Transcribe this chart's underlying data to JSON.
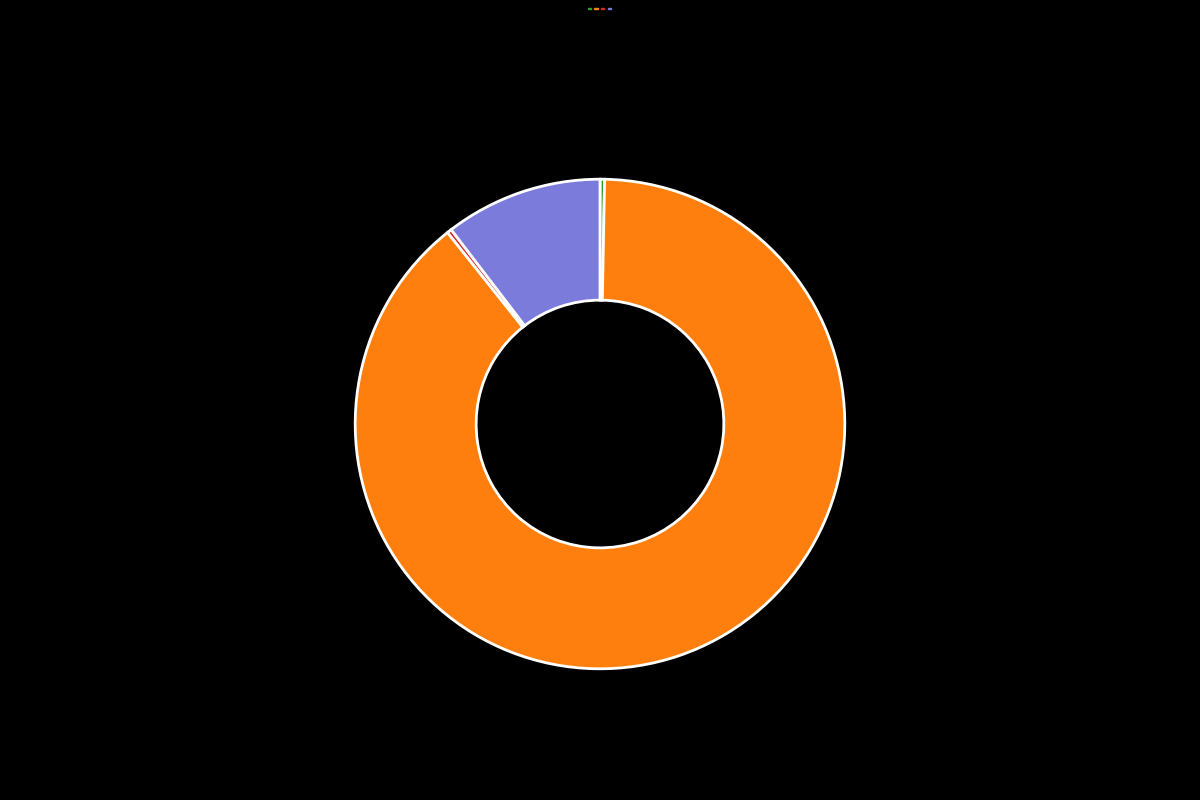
{
  "slices": [
    0.3,
    89.0,
    0.3,
    10.4
  ],
  "colors": [
    "#2ca02c",
    "#ff7f0e",
    "#d62728",
    "#7b7bdb"
  ],
  "legend_labels": [
    "",
    "",
    "",
    ""
  ],
  "background_color": "#000000",
  "wedge_linewidth": 2,
  "wedge_linecolor": "#ffffff",
  "donut_width": 0.42,
  "start_angle": 90,
  "figsize": [
    12.0,
    8.0
  ],
  "dpi": 100
}
